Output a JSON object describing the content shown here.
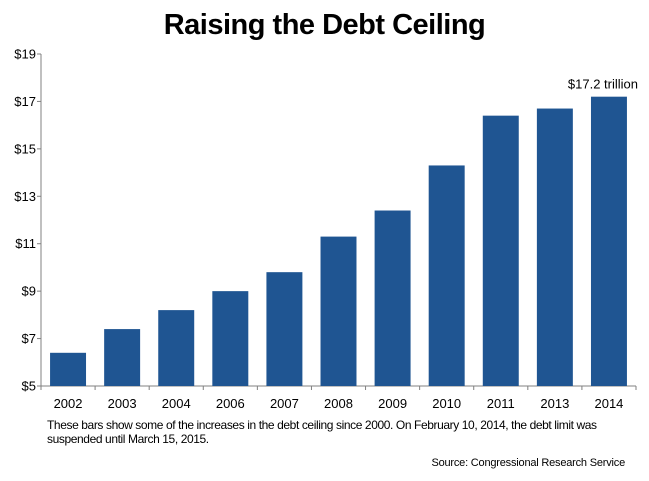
{
  "chart_data": {
    "type": "bar",
    "title": "Raising the Debt Ceiling",
    "categories": [
      "2002",
      "2003",
      "2004",
      "2006",
      "2007",
      "2008",
      "2009",
      "2010",
      "2011",
      "2013",
      "2014"
    ],
    "values": [
      6.4,
      7.4,
      8.2,
      9.0,
      9.8,
      11.3,
      12.4,
      14.3,
      16.4,
      16.7,
      17.2
    ],
    "ylim": [
      5,
      19
    ],
    "yticks": [
      "$5",
      "$7",
      "$9",
      "$11",
      "$13",
      "$15",
      "$17",
      "$19"
    ],
    "ytick_values": [
      5,
      7,
      9,
      11,
      13,
      15,
      17,
      19
    ],
    "xlabel": "",
    "ylabel": "",
    "annotation": "$17.2 trillion",
    "bar_color": "#1f5592",
    "grid": false
  },
  "caption": "These bars show some of the increases in the debt ceiling since 2000. On February 10, 2014, the debt limit was suspended until March 15, 2015.",
  "source": "Source: Congressional Research Service"
}
